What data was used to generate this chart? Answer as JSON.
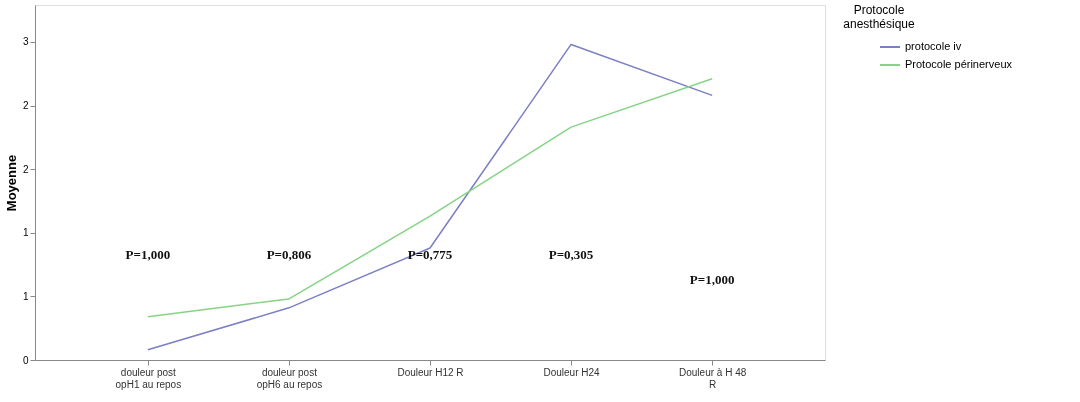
{
  "chart_data": {
    "type": "line",
    "ylabel": "Moyenne",
    "legend_title": "Protocole anesthésique",
    "categories": [
      "douleur post opH1 au repos",
      "douleur post opH6 au repos",
      "Douleur H12 R",
      "Douleur H24",
      "Douleur à H 48 R"
    ],
    "series": [
      {
        "name": "protocole iv",
        "color": "#7b7fc4",
        "values": [
          0.08,
          0.41,
          0.88,
          2.48,
          2.08
        ]
      },
      {
        "name": "Protocole périnerveux",
        "color": "#86d486",
        "values": [
          0.34,
          0.48,
          1.13,
          1.83,
          2.21
        ]
      }
    ],
    "ylim": [
      0,
      2.79
    ],
    "yticks": [
      0,
      {
        "value": 0.5,
        "label": "1"
      },
      1,
      {
        "value": 1.5,
        "label": "2"
      },
      2,
      {
        "value": 2.5,
        "label": "3"
      }
    ],
    "grid": false,
    "legend": "top right",
    "marker": "none",
    "line_style": "solid",
    "annotations": [
      "P=1,000",
      "P=0,806",
      "P=0,775",
      "P=0,305",
      "P=1,000"
    ]
  }
}
